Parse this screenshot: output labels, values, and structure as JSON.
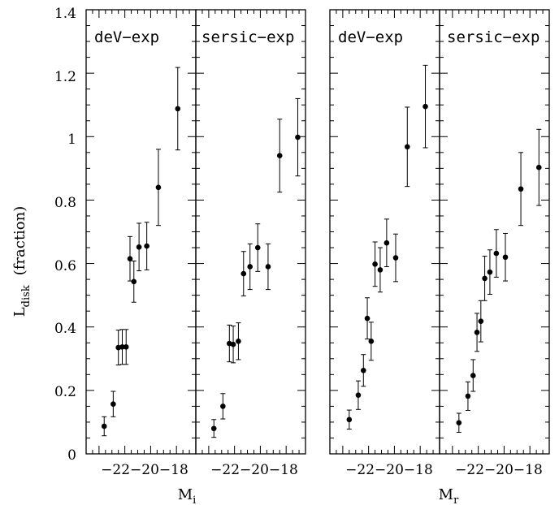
{
  "chart_data": {
    "type": "scatter",
    "ylabel_main": "L",
    "ylabel_sub": "disk",
    "ylabel_rest": "(fraction)",
    "ylim": [
      0,
      1.4
    ],
    "yticks": [
      "0",
      "0.2",
      "0.4",
      "0.6",
      "0.8",
      "1",
      "1.2",
      "1.4"
    ],
    "xlim": [
      -25,
      -16.5
    ],
    "xtick_label": "−22−20−18",
    "groups": [
      {
        "xlabel_main": "M",
        "xlabel_sub": "i"
      },
      {
        "xlabel_main": "M",
        "xlabel_sub": "r"
      }
    ],
    "panels": [
      {
        "label": "deV−exp",
        "points": [
          {
            "x": -23.6,
            "y": 0.087,
            "err": 0.03
          },
          {
            "x": -22.9,
            "y": 0.157,
            "err": 0.04
          },
          {
            "x": -22.5,
            "y": 0.335,
            "err": 0.055
          },
          {
            "x": -22.2,
            "y": 0.337,
            "err": 0.055
          },
          {
            "x": -21.9,
            "y": 0.337,
            "err": 0.055
          },
          {
            "x": -21.6,
            "y": 0.615,
            "err": 0.07
          },
          {
            "x": -21.3,
            "y": 0.543,
            "err": 0.065
          },
          {
            "x": -20.9,
            "y": 0.652,
            "err": 0.075
          },
          {
            "x": -20.3,
            "y": 0.655,
            "err": 0.075
          },
          {
            "x": -19.4,
            "y": 0.84,
            "err": 0.12
          },
          {
            "x": -17.9,
            "y": 1.088,
            "err": 0.13
          }
        ]
      },
      {
        "label": "sersic−exp",
        "points": [
          {
            "x": -23.6,
            "y": 0.08,
            "err": 0.028
          },
          {
            "x": -22.9,
            "y": 0.15,
            "err": 0.04
          },
          {
            "x": -22.4,
            "y": 0.348,
            "err": 0.058
          },
          {
            "x": -22.1,
            "y": 0.345,
            "err": 0.058
          },
          {
            "x": -21.7,
            "y": 0.355,
            "err": 0.058
          },
          {
            "x": -21.3,
            "y": 0.568,
            "err": 0.07
          },
          {
            "x": -20.8,
            "y": 0.59,
            "err": 0.072
          },
          {
            "x": -20.2,
            "y": 0.65,
            "err": 0.075
          },
          {
            "x": -19.4,
            "y": 0.59,
            "err": 0.072
          },
          {
            "x": -18.5,
            "y": 0.94,
            "err": 0.115
          },
          {
            "x": -17.1,
            "y": 0.998,
            "err": 0.122
          }
        ]
      },
      {
        "label": "deV−exp",
        "points": [
          {
            "x": -23.5,
            "y": 0.108,
            "err": 0.03
          },
          {
            "x": -22.8,
            "y": 0.185,
            "err": 0.045
          },
          {
            "x": -22.4,
            "y": 0.263,
            "err": 0.05
          },
          {
            "x": -22.1,
            "y": 0.427,
            "err": 0.065
          },
          {
            "x": -21.8,
            "y": 0.355,
            "err": 0.06
          },
          {
            "x": -21.5,
            "y": 0.598,
            "err": 0.07
          },
          {
            "x": -21.1,
            "y": 0.58,
            "err": 0.07
          },
          {
            "x": -20.6,
            "y": 0.665,
            "err": 0.075
          },
          {
            "x": -19.9,
            "y": 0.618,
            "err": 0.075
          },
          {
            "x": -19.0,
            "y": 0.968,
            "err": 0.125
          },
          {
            "x": -17.6,
            "y": 1.095,
            "err": 0.13
          }
        ]
      },
      {
        "label": "sersic−exp",
        "points": [
          {
            "x": -23.5,
            "y": 0.098,
            "err": 0.03
          },
          {
            "x": -22.8,
            "y": 0.182,
            "err": 0.045
          },
          {
            "x": -22.4,
            "y": 0.247,
            "err": 0.05
          },
          {
            "x": -22.1,
            "y": 0.383,
            "err": 0.06
          },
          {
            "x": -21.8,
            "y": 0.418,
            "err": 0.065
          },
          {
            "x": -21.5,
            "y": 0.553,
            "err": 0.07
          },
          {
            "x": -21.1,
            "y": 0.573,
            "err": 0.07
          },
          {
            "x": -20.6,
            "y": 0.632,
            "err": 0.075
          },
          {
            "x": -19.9,
            "y": 0.62,
            "err": 0.075
          },
          {
            "x": -18.7,
            "y": 0.835,
            "err": 0.115
          },
          {
            "x": -17.3,
            "y": 0.903,
            "err": 0.12
          }
        ]
      }
    ]
  }
}
